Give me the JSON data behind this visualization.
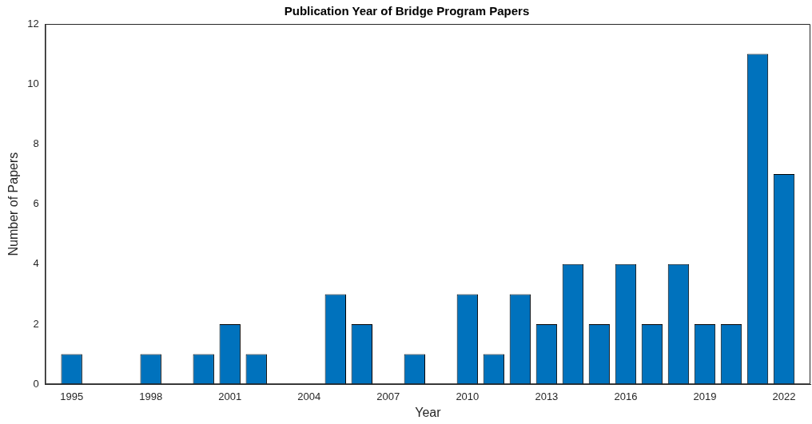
{
  "chart_data": {
    "type": "bar",
    "title": "Publication Year of Bridge Program Papers",
    "xlabel": "Year",
    "ylabel": "Number of Papers",
    "x": [
      1995,
      1998,
      2000,
      2001,
      2002,
      2005,
      2006,
      2008,
      2010,
      2011,
      2012,
      2013,
      2014,
      2015,
      2016,
      2017,
      2018,
      2019,
      2020,
      2021,
      2022
    ],
    "values": [
      1,
      1,
      1,
      2,
      1,
      3,
      2,
      1,
      3,
      1,
      3,
      2,
      4,
      2,
      4,
      2,
      4,
      2,
      2,
      11,
      7
    ],
    "color": "#0072bd",
    "xlim": [
      1994,
      2023
    ],
    "xticks": [
      1995,
      1998,
      2001,
      2004,
      2007,
      2010,
      2013,
      2016,
      2019,
      2022
    ],
    "ylim": [
      0,
      12
    ],
    "yticks": [
      0,
      2,
      4,
      6,
      8,
      10,
      12
    ]
  }
}
